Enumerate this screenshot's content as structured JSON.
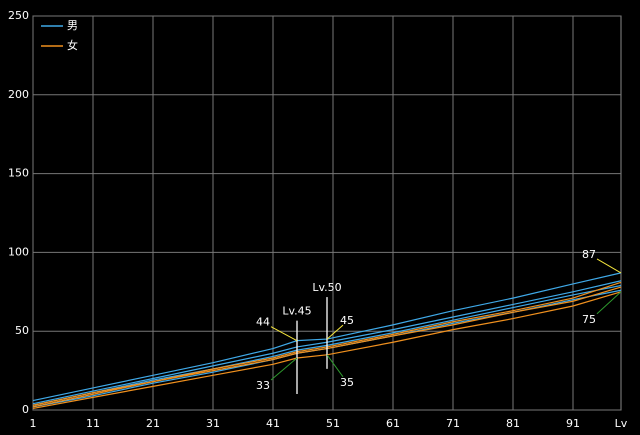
{
  "chart_data": {
    "type": "line",
    "x_label": "Lv",
    "xlim": [
      1,
      99
    ],
    "xticks": [
      1,
      11,
      21,
      31,
      41,
      51,
      61,
      71,
      81,
      91
    ],
    "ylim": [
      0,
      250
    ],
    "yticks": [
      0,
      50,
      100,
      150,
      200,
      250
    ],
    "grid": true,
    "legend": "top-left",
    "x": [
      1,
      11,
      21,
      31,
      41,
      45,
      50,
      61,
      71,
      81,
      91,
      99
    ],
    "series": [
      {
        "name": "男",
        "color": "#3fa9e8",
        "values": [
          6,
          14,
          22,
          30,
          39,
          44,
          45,
          54,
          63,
          71,
          80,
          87
        ]
      },
      {
        "name": null,
        "color": "#3fa9e8",
        "values": [
          4,
          12,
          20,
          28,
          36,
          40,
          43,
          51,
          59,
          67,
          75,
          82
        ]
      },
      {
        "name": null,
        "color": "#3fa9e8",
        "values": [
          3,
          11,
          19,
          26,
          34,
          38,
          41,
          49,
          57,
          65,
          73,
          79
        ]
      },
      {
        "name": null,
        "color": "#3fa9e8",
        "values": [
          2,
          9,
          17,
          24,
          32,
          36,
          39,
          47,
          55,
          62,
          70,
          76
        ]
      },
      {
        "name": "女",
        "color": "#f0901e",
        "values": [
          3,
          11,
          18,
          26,
          33,
          37,
          40,
          48,
          56,
          63,
          71,
          81
        ]
      },
      {
        "name": null,
        "color": "#f0901e",
        "values": [
          2,
          10,
          18,
          25,
          32,
          36,
          39,
          47,
          54,
          62,
          69,
          78
        ]
      },
      {
        "name": null,
        "color": "#f0901e",
        "values": [
          1,
          8,
          15,
          22,
          29,
          33,
          35,
          43,
          51,
          58,
          66,
          75
        ]
      }
    ],
    "markers": [
      {
        "label": "Lv.45",
        "x": 45
      },
      {
        "label": "Lv.50",
        "x": 50
      }
    ],
    "annotations": [
      {
        "label": "44",
        "x": 45,
        "y": 44,
        "color": "#f5e63c"
      },
      {
        "label": "33",
        "x": 45,
        "y": 33,
        "color": "#2e9a2e"
      },
      {
        "label": "45",
        "x": 50,
        "y": 45,
        "color": "#f5e63c"
      },
      {
        "label": "35",
        "x": 50,
        "y": 35,
        "color": "#2e9a2e"
      },
      {
        "label": "87",
        "x": 99,
        "y": 87,
        "color": "#f5e63c"
      },
      {
        "label": "75",
        "x": 99,
        "y": 75,
        "color": "#2e9a2e"
      }
    ]
  }
}
